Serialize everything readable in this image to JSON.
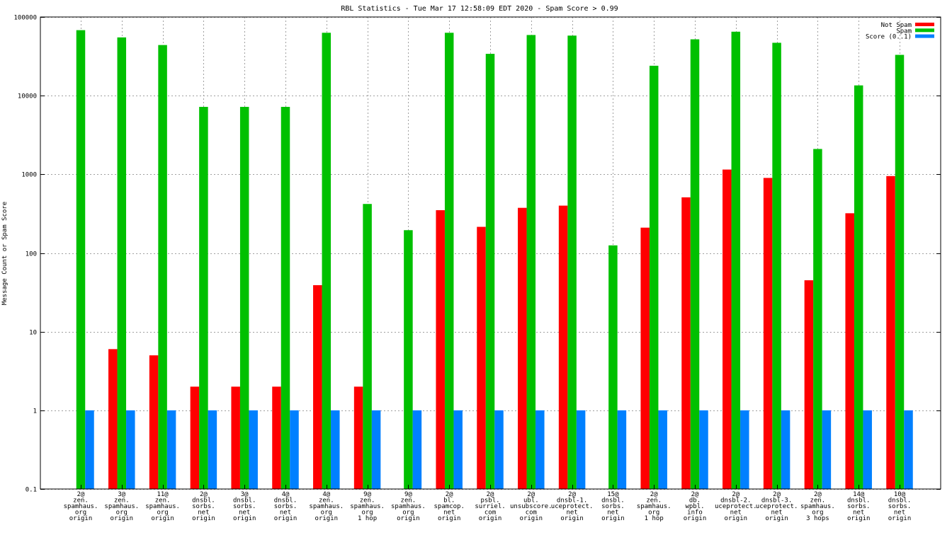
{
  "chart_data": {
    "type": "bar",
    "title": "RBL Statistics - Tue Mar 17 12:58:09 EDT 2020 - Spam Score > 0.99",
    "ylabel": "Message Count or Spam Score",
    "xlabel": "",
    "yscale": "log",
    "ylim": [
      0.1,
      100000
    ],
    "y_ticks": [
      "0.1",
      "1",
      "10",
      "100",
      "1000",
      "10000",
      "100000"
    ],
    "grid": true,
    "legend_position": "top-right",
    "categories": [
      [
        "2@",
        "zen.",
        "spamhaus.",
        "org",
        "origin"
      ],
      [
        "3@",
        "zen.",
        "spamhaus.",
        "org",
        "origin"
      ],
      [
        "11@",
        "zen.",
        "spamhaus.",
        "org",
        "origin"
      ],
      [
        "2@",
        "dnsbl.",
        "sorbs.",
        "net",
        "origin"
      ],
      [
        "3@",
        "dnsbl.",
        "sorbs.",
        "net",
        "origin"
      ],
      [
        "4@",
        "dnsbl.",
        "sorbs.",
        "net",
        "origin"
      ],
      [
        "4@",
        "zen.",
        "spamhaus.",
        "org",
        "origin"
      ],
      [
        "9@",
        "zen.",
        "spamhaus.",
        "org",
        "1 hop"
      ],
      [
        "9@",
        "zen.",
        "spamhaus.",
        "org",
        "origin"
      ],
      [
        "2@",
        "bl.",
        "spamcop.",
        "net",
        "origin"
      ],
      [
        "2@",
        "psbl.",
        "surriel.",
        "com",
        "origin"
      ],
      [
        "2@",
        "ubl.",
        "unsubscore.",
        "com",
        "origin"
      ],
      [
        "2@",
        "dnsbl-1.",
        "uceprotect.",
        "net",
        "origin"
      ],
      [
        "15@",
        "dnsbl.",
        "sorbs.",
        "net",
        "origin"
      ],
      [
        "2@",
        "zen.",
        "spamhaus.",
        "org",
        "1 hop"
      ],
      [
        "2@",
        "db.",
        "wpbl.",
        "info",
        "origin"
      ],
      [
        "2@",
        "dnsbl-2.",
        "uceprotect.",
        "net",
        "origin"
      ],
      [
        "2@",
        "dnsbl-3.",
        "uceprotect.",
        "net",
        "origin"
      ],
      [
        "2@",
        "zen.",
        "spamhaus.",
        "org",
        "3 hops"
      ],
      [
        "14@",
        "dnsbl.",
        "sorbs.",
        "net",
        "origin"
      ],
      [
        "10@",
        "dnsbl.",
        "sorbs.",
        "net",
        "origin"
      ]
    ],
    "series": [
      {
        "name": "Not Spam",
        "color": "#ff0000",
        "values": [
          null,
          6,
          5,
          2,
          2,
          2,
          39,
          2,
          null,
          350,
          215,
          375,
          400,
          null,
          210,
          510,
          1150,
          900,
          45,
          320,
          950
        ]
      },
      {
        "name": "Spam",
        "color": "#00c000",
        "values": [
          68000,
          55000,
          44000,
          7200,
          7200,
          7200,
          63000,
          420,
          195,
          63000,
          34000,
          59000,
          58000,
          125,
          24000,
          52000,
          65000,
          47000,
          2100,
          13500,
          33000
        ]
      },
      {
        "name": "Score (0..1)",
        "color": "#0080ff",
        "values": [
          1,
          1,
          1,
          1,
          1,
          1,
          1,
          1,
          1,
          1,
          1,
          1,
          1,
          1,
          1,
          1,
          1,
          1,
          1,
          1,
          1
        ]
      }
    ]
  }
}
